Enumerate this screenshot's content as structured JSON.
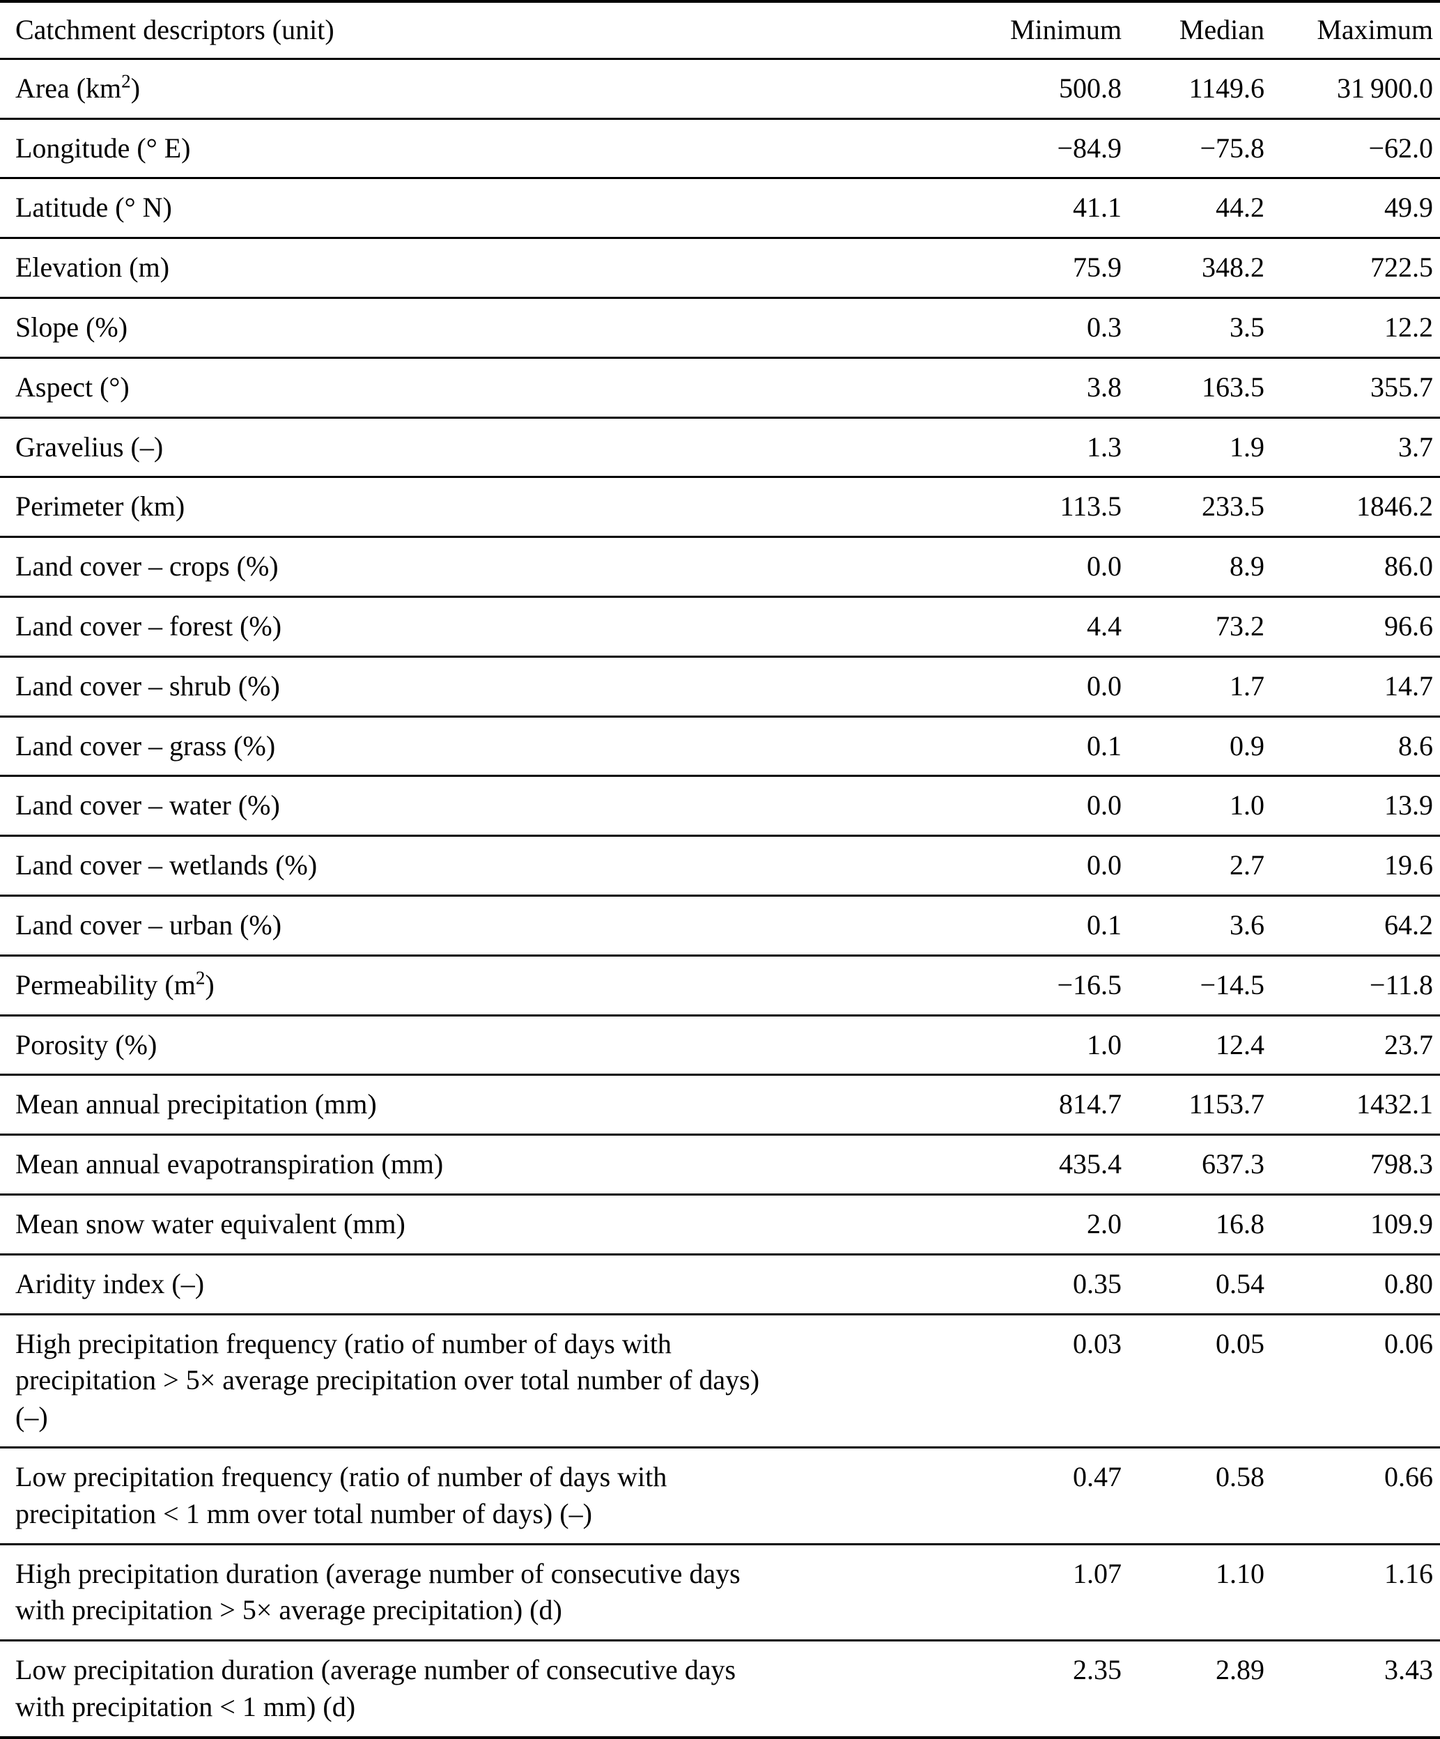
{
  "table": {
    "header": {
      "descriptor": "Catchment descriptors (unit)",
      "minimum": "Minimum",
      "median": "Median",
      "maximum": "Maximum"
    },
    "rows": [
      {
        "label": "Area (km",
        "sup": "2",
        "post": ")",
        "min": "500.8",
        "median": "1149.6",
        "max": "31 900.0"
      },
      {
        "label": "Longitude (° E)",
        "sup": "",
        "post": "",
        "min": "−84.9",
        "median": "−75.8",
        "max": "−62.0"
      },
      {
        "label": "Latitude (° N)",
        "sup": "",
        "post": "",
        "min": "41.1",
        "median": "44.2",
        "max": "49.9"
      },
      {
        "label": "Elevation (m)",
        "sup": "",
        "post": "",
        "min": "75.9",
        "median": "348.2",
        "max": "722.5"
      },
      {
        "label": "Slope (%)",
        "sup": "",
        "post": "",
        "min": "0.3",
        "median": "3.5",
        "max": "12.2"
      },
      {
        "label": "Aspect (°)",
        "sup": "",
        "post": "",
        "min": "3.8",
        "median": "163.5",
        "max": "355.7"
      },
      {
        "label": "Gravelius (–)",
        "sup": "",
        "post": "",
        "min": "1.3",
        "median": "1.9",
        "max": "3.7"
      },
      {
        "label": "Perimeter (km)",
        "sup": "",
        "post": "",
        "min": "113.5",
        "median": "233.5",
        "max": "1846.2"
      },
      {
        "label": "Land cover – crops (%)",
        "sup": "",
        "post": "",
        "min": "0.0",
        "median": "8.9",
        "max": "86.0"
      },
      {
        "label": "Land cover – forest (%)",
        "sup": "",
        "post": "",
        "min": "4.4",
        "median": "73.2",
        "max": "96.6"
      },
      {
        "label": "Land cover – shrub (%)",
        "sup": "",
        "post": "",
        "min": "0.0",
        "median": "1.7",
        "max": "14.7"
      },
      {
        "label": "Land cover – grass (%)",
        "sup": "",
        "post": "",
        "min": "0.1",
        "median": "0.9",
        "max": "8.6"
      },
      {
        "label": "Land cover – water (%)",
        "sup": "",
        "post": "",
        "min": "0.0",
        "median": "1.0",
        "max": "13.9"
      },
      {
        "label": "Land cover – wetlands (%)",
        "sup": "",
        "post": "",
        "min": "0.0",
        "median": "2.7",
        "max": "19.6"
      },
      {
        "label": "Land cover – urban (%)",
        "sup": "",
        "post": "",
        "min": "0.1",
        "median": "3.6",
        "max": "64.2"
      },
      {
        "label": "Permeability (m",
        "sup": "2",
        "post": ")",
        "min": "−16.5",
        "median": "−14.5",
        "max": "−11.8"
      },
      {
        "label": "Porosity (%)",
        "sup": "",
        "post": "",
        "min": "1.0",
        "median": "12.4",
        "max": "23.7"
      },
      {
        "label": "Mean annual precipitation (mm)",
        "sup": "",
        "post": "",
        "min": "814.7",
        "median": "1153.7",
        "max": "1432.1"
      },
      {
        "label": "Mean annual evapotranspiration (mm)",
        "sup": "",
        "post": "",
        "min": "435.4",
        "median": "637.3",
        "max": "798.3"
      },
      {
        "label": "Mean snow water equivalent (mm)",
        "sup": "",
        "post": "",
        "min": "2.0",
        "median": "16.8",
        "max": "109.9"
      },
      {
        "label": "Aridity index (–)",
        "sup": "",
        "post": "",
        "min": "0.35",
        "median": "0.54",
        "max": "0.80"
      },
      {
        "label": "High precipitation frequency (ratio of number of days with precipitation > 5× average precipitation over total number of days) (–)",
        "sup": "",
        "post": "",
        "min": "0.03",
        "median": "0.05",
        "max": "0.06"
      },
      {
        "label": "Low precipitation frequency (ratio of number of days with precipitation < 1 mm over total number of days) (–)",
        "sup": "",
        "post": "",
        "min": "0.47",
        "median": "0.58",
        "max": "0.66"
      },
      {
        "label": "High precipitation duration (average number of consecutive days with precipitation > 5× average precipitation) (d)",
        "sup": "",
        "post": "",
        "min": "1.07",
        "median": "1.10",
        "max": "1.16"
      },
      {
        "label": "Low precipitation duration (average number of consecutive days with precipitation < 1 mm) (d)",
        "sup": "",
        "post": "",
        "min": "2.35",
        "median": "2.89",
        "max": "3.43"
      }
    ]
  }
}
